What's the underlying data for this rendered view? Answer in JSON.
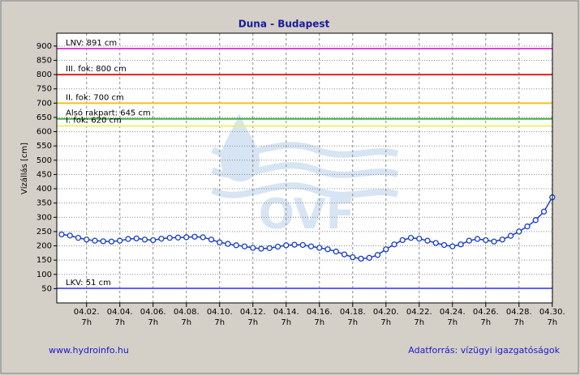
{
  "chart_data": {
    "type": "line",
    "title": "Duna - Budapest",
    "y_label": "Vízállás [cm]",
    "watermark": "OVF",
    "footer_left": "www.hydroinfo.hu",
    "footer_right": "Adatforrás: vízügyi igazgatóságok",
    "xlim": [
      0.5,
      30.3
    ],
    "ylim": [
      0,
      945
    ],
    "xtick_time": "7h",
    "xticks": [
      {
        "value": 2.29,
        "label": "04.02."
      },
      {
        "value": 4.29,
        "label": "04.04."
      },
      {
        "value": 6.29,
        "label": "04.06."
      },
      {
        "value": 8.29,
        "label": "04.08."
      },
      {
        "value": 10.29,
        "label": "04.10."
      },
      {
        "value": 12.29,
        "label": "04.12."
      },
      {
        "value": 14.29,
        "label": "04.14."
      },
      {
        "value": 16.29,
        "label": "04.16."
      },
      {
        "value": 18.29,
        "label": "04.18."
      },
      {
        "value": 20.29,
        "label": "04.20."
      },
      {
        "value": 22.29,
        "label": "04.22."
      },
      {
        "value": 24.29,
        "label": "04.24."
      },
      {
        "value": 26.29,
        "label": "04.26."
      },
      {
        "value": 28.29,
        "label": "04.28."
      },
      {
        "value": 30.29,
        "label": "04.30."
      }
    ],
    "yticks": [
      50,
      100,
      150,
      200,
      250,
      300,
      350,
      400,
      450,
      500,
      550,
      600,
      650,
      700,
      750,
      800,
      850,
      900
    ],
    "grid": true,
    "reference_lines": [
      {
        "label": "LNV: 891 cm",
        "value": 891,
        "color": "#e040e0"
      },
      {
        "label": "III. fok: 800 cm",
        "value": 800,
        "color": "#e02020"
      },
      {
        "label": "II. fok: 700 cm",
        "value": 700,
        "color": "#f0c020"
      },
      {
        "label": "Alsó rakpart: 645 cm",
        "value": 645,
        "color": "#40b040"
      },
      {
        "label": "I. fok: 620 cm",
        "value": 620,
        "color": "#e8f070"
      },
      {
        "label": "LKV: 51 cm",
        "value": 51,
        "color": "#6060ff"
      }
    ],
    "series": [
      {
        "color": "#1a3cc8",
        "x": [
          0.79,
          1.29,
          1.79,
          2.29,
          2.79,
          3.29,
          3.79,
          4.29,
          4.79,
          5.29,
          5.79,
          6.29,
          6.79,
          7.29,
          7.79,
          8.29,
          8.79,
          9.29,
          9.79,
          10.29,
          10.79,
          11.29,
          11.79,
          12.29,
          12.79,
          13.29,
          13.79,
          14.29,
          14.79,
          15.29,
          15.79,
          16.29,
          16.79,
          17.29,
          17.79,
          18.29,
          18.79,
          19.29,
          19.79,
          20.29,
          20.79,
          21.29,
          21.79,
          22.29,
          22.79,
          23.29,
          23.79,
          24.29,
          24.79,
          25.29,
          25.79,
          26.29,
          26.79,
          27.29,
          27.79,
          28.29,
          28.79,
          29.29,
          29.79,
          30.29
        ],
        "values": [
          240,
          236,
          228,
          222,
          218,
          216,
          215,
          218,
          224,
          226,
          222,
          220,
          225,
          228,
          229,
          230,
          232,
          230,
          222,
          212,
          207,
          202,
          198,
          193,
          190,
          192,
          197,
          202,
          204,
          203,
          198,
          193,
          188,
          180,
          170,
          160,
          155,
          158,
          168,
          188,
          205,
          220,
          228,
          225,
          218,
          210,
          203,
          198,
          205,
          218,
          224,
          220,
          215,
          222,
          235,
          250,
          268,
          290,
          320,
          370
        ]
      }
    ]
  }
}
